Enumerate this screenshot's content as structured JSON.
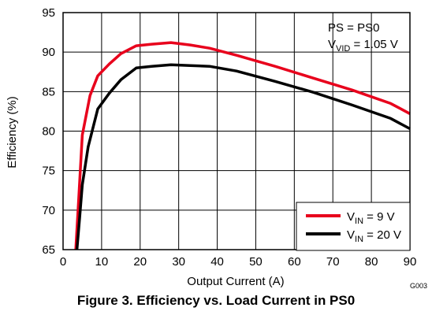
{
  "figure": {
    "caption": "Figure 3. Efficiency vs. Load Current in PS0",
    "code": "G003"
  },
  "annotation": {
    "line1": "PS = PS0",
    "line2_main": "V",
    "line2_sub": "VID",
    "line2_rest": " = 1.05 V"
  },
  "chart_data": {
    "type": "line",
    "title": "",
    "xlabel": "Output Current (A)",
    "ylabel": "Efficiency (%)",
    "xlim": [
      0,
      90
    ],
    "ylim": [
      65,
      95
    ],
    "xticks": [
      0,
      10,
      20,
      30,
      40,
      50,
      60,
      70,
      80,
      90
    ],
    "yticks": [
      65,
      70,
      75,
      80,
      85,
      90,
      95
    ],
    "grid": true,
    "legend_position": "bottom-right",
    "series": [
      {
        "name_main": "V",
        "name_sub": "IN",
        "name_rest": " = 9 V",
        "color": "#e8001c",
        "x": [
          3.3,
          4,
          5,
          7,
          9,
          12,
          15,
          19,
          23,
          28,
          33,
          38,
          45,
          55,
          65,
          75,
          85,
          90
        ],
        "y": [
          65,
          71,
          79.5,
          84.5,
          87,
          88.5,
          89.8,
          90.8,
          91,
          91.2,
          90.9,
          90.5,
          89.6,
          88.2,
          86.7,
          85.2,
          83.5,
          82.2
        ]
      },
      {
        "name_main": "V",
        "name_sub": "IN",
        "name_rest": " = 20 V",
        "color": "#000000",
        "x": [
          3.6,
          4.3,
          5,
          6.5,
          9,
          12,
          15,
          19,
          23,
          28,
          33,
          38,
          45,
          55,
          65,
          75,
          85,
          90
        ],
        "y": [
          65,
          69,
          73.2,
          78,
          82.8,
          84.8,
          86.5,
          88,
          88.2,
          88.4,
          88.3,
          88.2,
          87.6,
          86.3,
          84.9,
          83.3,
          81.6,
          80.3
        ]
      }
    ]
  }
}
